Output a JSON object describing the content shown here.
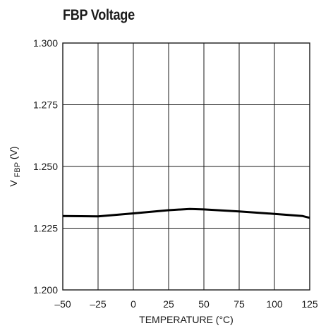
{
  "chart_data": {
    "type": "line",
    "title": "FBP Voltage",
    "xlabel": "TEMPERATURE (°C)",
    "ylabel_main": "V",
    "ylabel_sub": "FBP",
    "ylabel_unit": " (V)",
    "xlim": [
      -50,
      125
    ],
    "ylim": [
      1.2,
      1.3
    ],
    "xticks": [
      -50,
      -25,
      0,
      25,
      50,
      75,
      100,
      125
    ],
    "xtick_labels": [
      "–50",
      "–25",
      "0",
      "25",
      "50",
      "75",
      "100",
      "125"
    ],
    "yticks": [
      1.2,
      1.225,
      1.25,
      1.275,
      1.3
    ],
    "ytick_labels": [
      "1.200",
      "1.225",
      "1.250",
      "1.275",
      "1.300"
    ],
    "grid": true,
    "series": [
      {
        "x": [
          -50,
          -25,
          0,
          25,
          40,
          50,
          75,
          100,
          120,
          125
        ],
        "y": [
          1.2299,
          1.2298,
          1.231,
          1.2323,
          1.2328,
          1.2326,
          1.2318,
          1.2308,
          1.2299,
          1.2292
        ]
      }
    ],
    "line_color": "#000000"
  }
}
